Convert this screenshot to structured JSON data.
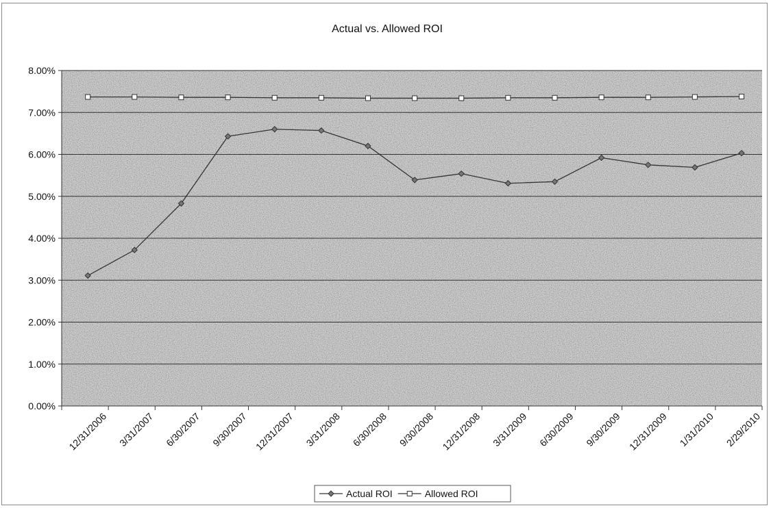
{
  "chart_data": {
    "type": "line",
    "title": "Actual vs. Allowed ROI",
    "xlabel": "",
    "ylabel": "",
    "categories": [
      "12/31/2006",
      "3/31/2007",
      "6/30/2007",
      "9/30/2007",
      "12/31/2007",
      "3/31/2008",
      "6/30/2008",
      "9/30/2008",
      "12/31/2008",
      "3/31/2009",
      "6/30/2009",
      "9/30/2009",
      "12/31/2009",
      "1/31/2010",
      "2/29/2010"
    ],
    "ylim": [
      0,
      0.08
    ],
    "y_ticks": [
      "0.00%",
      "1.00%",
      "2.00%",
      "3.00%",
      "4.00%",
      "5.00%",
      "6.00%",
      "7.00%",
      "8.00%"
    ],
    "series": [
      {
        "name": "Actual ROI",
        "marker": "diamond",
        "color": "#333333",
        "values": [
          0.0311,
          0.0372,
          0.0483,
          0.0643,
          0.066,
          0.0657,
          0.062,
          0.0539,
          0.0554,
          0.0531,
          0.0535,
          0.0592,
          0.0575,
          0.0569,
          0.0603
        ]
      },
      {
        "name": "Allowed ROI",
        "marker": "square",
        "color": "#333333",
        "values": [
          0.0737,
          0.0737,
          0.0736,
          0.0736,
          0.0735,
          0.0735,
          0.0734,
          0.0734,
          0.0734,
          0.0735,
          0.0735,
          0.0736,
          0.0736,
          0.0737,
          0.0738
        ]
      }
    ],
    "grid": true,
    "legend_position": "bottom",
    "plot_background": "#cfcfcf"
  }
}
